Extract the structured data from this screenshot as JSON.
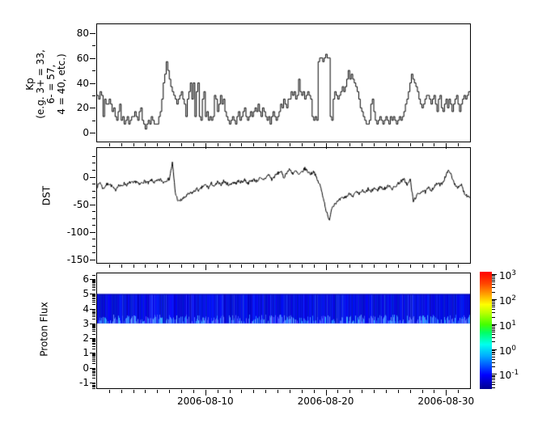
{
  "figure": {
    "background": "#ffffff"
  },
  "x_axis": {
    "start_date": "2006-08-01",
    "end_date": "2006-09-01",
    "range_days": 31,
    "minor_tick_interval_days": 1,
    "major_tick_days": [
      9,
      19,
      29
    ],
    "major_tick_labels": [
      "2006-08-10",
      "2006-08-20",
      "2006-08-30"
    ]
  },
  "chart_data": [
    {
      "type": "line",
      "name": "Kp index",
      "style": "step",
      "ylabel_lines": [
        "Kp",
        "(e.g. 3+ = 33,",
        "6- = 57,",
        "4 = 40, etc.)"
      ],
      "ylim": [
        -7,
        87
      ],
      "yticks": [
        0,
        20,
        40,
        60,
        80
      ],
      "yticks_minor": [
        10,
        30,
        50,
        70
      ],
      "interval_hours": 3,
      "line_color": "#000000",
      "values": [
        30,
        27,
        33,
        30,
        13,
        27,
        23,
        23,
        27,
        23,
        17,
        20,
        13,
        10,
        17,
        23,
        10,
        13,
        7,
        10,
        13,
        7,
        10,
        13,
        13,
        17,
        13,
        10,
        17,
        20,
        10,
        7,
        3,
        7,
        10,
        7,
        13,
        10,
        7,
        7,
        7,
        13,
        17,
        27,
        40,
        47,
        57,
        50,
        43,
        37,
        33,
        30,
        27,
        23,
        27,
        30,
        33,
        27,
        23,
        13,
        27,
        33,
        40,
        27,
        40,
        13,
        33,
        40,
        13,
        10,
        27,
        33,
        13,
        17,
        10,
        13,
        10,
        13,
        30,
        27,
        17,
        23,
        30,
        23,
        27,
        17,
        13,
        10,
        7,
        10,
        13,
        10,
        7,
        13,
        17,
        10,
        13,
        17,
        20,
        13,
        10,
        13,
        17,
        13,
        17,
        20,
        17,
        23,
        17,
        13,
        20,
        17,
        13,
        10,
        13,
        7,
        13,
        17,
        13,
        10,
        13,
        17,
        23,
        20,
        27,
        23,
        20,
        27,
        27,
        33,
        30,
        33,
        27,
        30,
        43,
        33,
        30,
        33,
        27,
        30,
        33,
        30,
        27,
        13,
        10,
        13,
        10,
        57,
        60,
        60,
        57,
        60,
        63,
        60,
        60,
        13,
        10,
        27,
        33,
        30,
        27,
        30,
        33,
        37,
        33,
        37,
        43,
        50,
        43,
        47,
        43,
        40,
        37,
        33,
        27,
        20,
        17,
        13,
        10,
        7,
        7,
        10,
        23,
        27,
        17,
        10,
        7,
        10,
        13,
        10,
        7,
        10,
        13,
        10,
        7,
        13,
        10,
        13,
        10,
        7,
        10,
        13,
        10,
        13,
        17,
        23,
        27,
        33,
        40,
        47,
        43,
        40,
        37,
        33,
        27,
        23,
        20,
        23,
        27,
        30,
        30,
        27,
        23,
        27,
        30,
        23,
        17,
        27,
        30,
        20,
        17,
        23,
        27,
        20,
        27,
        23,
        17,
        23,
        27,
        30,
        23,
        17,
        23,
        27,
        30,
        27,
        30,
        33
      ]
    },
    {
      "type": "line",
      "name": "DST index",
      "style": "line",
      "ylabel": "DST",
      "ylim": [
        -156,
        52
      ],
      "yticks": [
        0,
        -50,
        -100,
        -150
      ],
      "yticks_minor": [
        37.5,
        25,
        12.5,
        -12.5,
        -25,
        -37.5,
        -62.5,
        -75,
        -87.5,
        -112.5,
        -125,
        -137.5
      ],
      "interval_hours": 6,
      "line_color": "#000000",
      "render_noise": {
        "amplitude": 6,
        "seed": 7
      },
      "values": [
        -18,
        -10,
        -22,
        -15,
        -12,
        -18,
        -25,
        -15,
        -18,
        -12,
        -15,
        -10,
        -12,
        -8,
        -15,
        -10,
        -8,
        -12,
        -6,
        -10,
        -8,
        -5,
        -10,
        -6,
        -4,
        25,
        -30,
        -45,
        -42,
        -38,
        -33,
        -30,
        -28,
        -22,
        -25,
        -18,
        -15,
        -20,
        -12,
        -18,
        -10,
        -15,
        -8,
        -12,
        -15,
        -10,
        -12,
        -8,
        -10,
        -5,
        -12,
        -8,
        -5,
        -8,
        -3,
        -6,
        -2,
        4,
        -5,
        1,
        6,
        10,
        -2,
        8,
        13,
        6,
        10,
        3,
        8,
        15,
        9,
        5,
        10,
        -5,
        -15,
        -35,
        -60,
        -80,
        -55,
        -48,
        -45,
        -40,
        -38,
        -35,
        -30,
        -35,
        -28,
        -32,
        -25,
        -30,
        -22,
        -28,
        -20,
        -25,
        -18,
        -22,
        -20,
        -15,
        -22,
        -18,
        -12,
        -8,
        -5,
        -15,
        -5,
        -45,
        -35,
        -30,
        -25,
        -28,
        -20,
        -24,
        -18,
        -12,
        -15,
        -8,
        5,
        12,
        -5,
        -15,
        -20,
        -15,
        -30,
        -35
      ]
    },
    {
      "type": "heatmap",
      "name": "Proton Flux spectrogram",
      "ylabel": "Proton Flux",
      "ylim": [
        -1.4,
        6.4
      ],
      "yticks": [
        -1,
        0,
        1,
        2,
        3,
        4,
        5,
        6
      ],
      "minor_ticks": "log",
      "band": {
        "y_min": 3,
        "y_max": 5,
        "description": "continuous low-flux band across whole month, dark blue with lighter blue streaks near lower edge",
        "base_color": "#0000cc",
        "streak_color": "#3c64ff",
        "noise_seed": 42
      },
      "colorbar": {
        "scale": "log",
        "tick_exponents": [
          3,
          2,
          1,
          0,
          -1
        ],
        "tick_labels": [
          "10^3",
          "10^2",
          "10^1",
          "10^0",
          "10^-1"
        ],
        "range_exponents": [
          -1.6,
          3.1
        ],
        "colormap": "jet",
        "gradient_stops": [
          {
            "pos": 0.0,
            "color": "#00008f"
          },
          {
            "pos": 0.12,
            "color": "#0000ff"
          },
          {
            "pos": 0.28,
            "color": "#00aaff"
          },
          {
            "pos": 0.38,
            "color": "#00ffee"
          },
          {
            "pos": 0.48,
            "color": "#00ff66"
          },
          {
            "pos": 0.55,
            "color": "#44ff00"
          },
          {
            "pos": 0.65,
            "color": "#bbff00"
          },
          {
            "pos": 0.72,
            "color": "#ffff00"
          },
          {
            "pos": 0.8,
            "color": "#ffaa00"
          },
          {
            "pos": 0.9,
            "color": "#ff4400"
          },
          {
            "pos": 1.0,
            "color": "#ff0000"
          }
        ]
      }
    }
  ]
}
